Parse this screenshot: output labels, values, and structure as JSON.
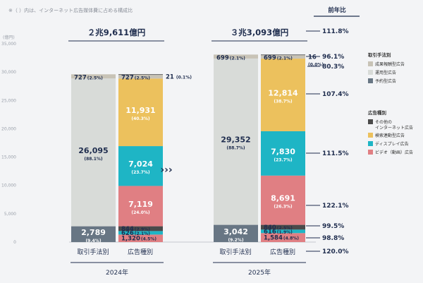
{
  "note": "※（ ）内は、インターネット広告媒体費に占める構成比",
  "yoy_title": "前年比",
  "axis_unit": "(億円)",
  "y_ticks": [
    "35,000",
    "30,000",
    "25,000",
    "20,000",
    "15,000",
    "10,000",
    "5,000",
    "0"
  ],
  "arrow": "›››",
  "legend": {
    "group1_title": "取引手法別",
    "group1": [
      "成果報酬型広告",
      "運用型広告",
      "予約型広告"
    ],
    "group2_title": "広告種別",
    "group2": [
      "その他の\nインターネット広告",
      "検索連動型広告",
      "ディスプレイ広告",
      "ビデオ（動画）広告"
    ]
  },
  "colors": {
    "seika": "#c8c3b6",
    "unyo": "#d8dbd8",
    "yoyaku": "#687684",
    "other": "#4a4a4a",
    "search": "#ecc15d",
    "display": "#1eb5c5",
    "video": "#e07f83"
  },
  "chart_data": {
    "type": "stacked-bar",
    "unit": "億円",
    "ylim": [
      0,
      35000
    ],
    "years": [
      {
        "year": "2024年",
        "total_label": "２兆9,611億円",
        "bars": [
          {
            "label": "取引手法別",
            "segments": [
              {
                "name": "予約型広告",
                "value": 2789,
                "label": "2,789",
                "pct": "(9.4%)"
              },
              {
                "name": "運用型広告",
                "value": 26095,
                "label": "26,095",
                "pct": "(88.1%)"
              },
              {
                "name": "成果報酬型広告",
                "value": 727,
                "label": "727",
                "pct": "(2.5%)"
              }
            ]
          },
          {
            "label": "広告種別",
            "segments": [
              {
                "name": "ビデオ（動画）広告",
                "value": 1320,
                "label": "1,320",
                "pct": "(4.5%)"
              },
              {
                "name": "ディスプレイ広告",
                "value": 626,
                "label": "626",
                "pct": "(2.1%)"
              },
              {
                "name": "検索連動型広告",
                "value": 844,
                "label": "844",
                "pct": "(2.9%)"
              },
              {
                "name": "ビデオ（動画）広告",
                "value": 7119,
                "label": "7,119",
                "pct": "(24.0%)"
              },
              {
                "name": "ディスプレイ広告",
                "value": 7024,
                "label": "7,024",
                "pct": "(23.7%)"
              },
              {
                "name": "検索連動型広告",
                "value": 11931,
                "label": "11,931",
                "pct": "(40.3%)"
              },
              {
                "name": "成果報酬型広告",
                "value": 727,
                "label": "727",
                "pct": "(2.5%)"
              },
              {
                "name": "その他",
                "value": 21,
                "label": "21",
                "pct": "(0.1%)"
              }
            ]
          }
        ]
      },
      {
        "year": "2025年",
        "total_label": "３兆3,093億円",
        "bars": [
          {
            "label": "取引手法別",
            "segments": [
              {
                "name": "予約型広告",
                "value": 3042,
                "label": "3,042",
                "pct": "(9.2%)"
              },
              {
                "name": "運用型広告",
                "value": 29352,
                "label": "29,352",
                "pct": "(88.7%)"
              },
              {
                "name": "成果報酬型広告",
                "value": 699,
                "label": "699",
                "pct": "(2.1%)"
              }
            ]
          },
          {
            "label": "広告種別",
            "segments": [
              {
                "name": "ビデオ（動画）広告",
                "value": 1584,
                "label": "1,584",
                "pct": "(4.8%)"
              },
              {
                "name": "ディスプレイ広告",
                "value": 616,
                "label": "616",
                "pct": "(1.9%)"
              },
              {
                "name": "検索連動型広告",
                "value": 840,
                "label": "840",
                "pct": "(2.5%)"
              },
              {
                "name": "ビデオ（動画）広告",
                "value": 8691,
                "label": "8,691",
                "pct": "(26.3%)"
              },
              {
                "name": "ディスプレイ広告",
                "value": 7830,
                "label": "7,830",
                "pct": "(23.7%)"
              },
              {
                "name": "検索連動型広告",
                "value": 12814,
                "label": "12,814",
                "pct": "(38.7%)"
              },
              {
                "name": "成果報酬型広告",
                "value": 699,
                "label": "699",
                "pct": "(2.1%)"
              },
              {
                "name": "その他",
                "value": 16,
                "label": "16",
                "pct": "(0.0%)"
              }
            ]
          }
        ]
      }
    ],
    "yoy": [
      {
        "label": "111.8%",
        "at": 33093
      },
      {
        "label": "96.1%",
        "at": 32500
      },
      {
        "label": "80.3%",
        "at": 31600
      },
      {
        "label": "107.4%",
        "at": 26200
      },
      {
        "label": "111.5%",
        "at": 15200
      },
      {
        "label": "122.1%",
        "at": 6200
      },
      {
        "label": "99.5%",
        "at": 2400
      },
      {
        "label": "98.8%",
        "at": 200
      },
      {
        "label": "120.0%",
        "at": -2000
      }
    ]
  }
}
